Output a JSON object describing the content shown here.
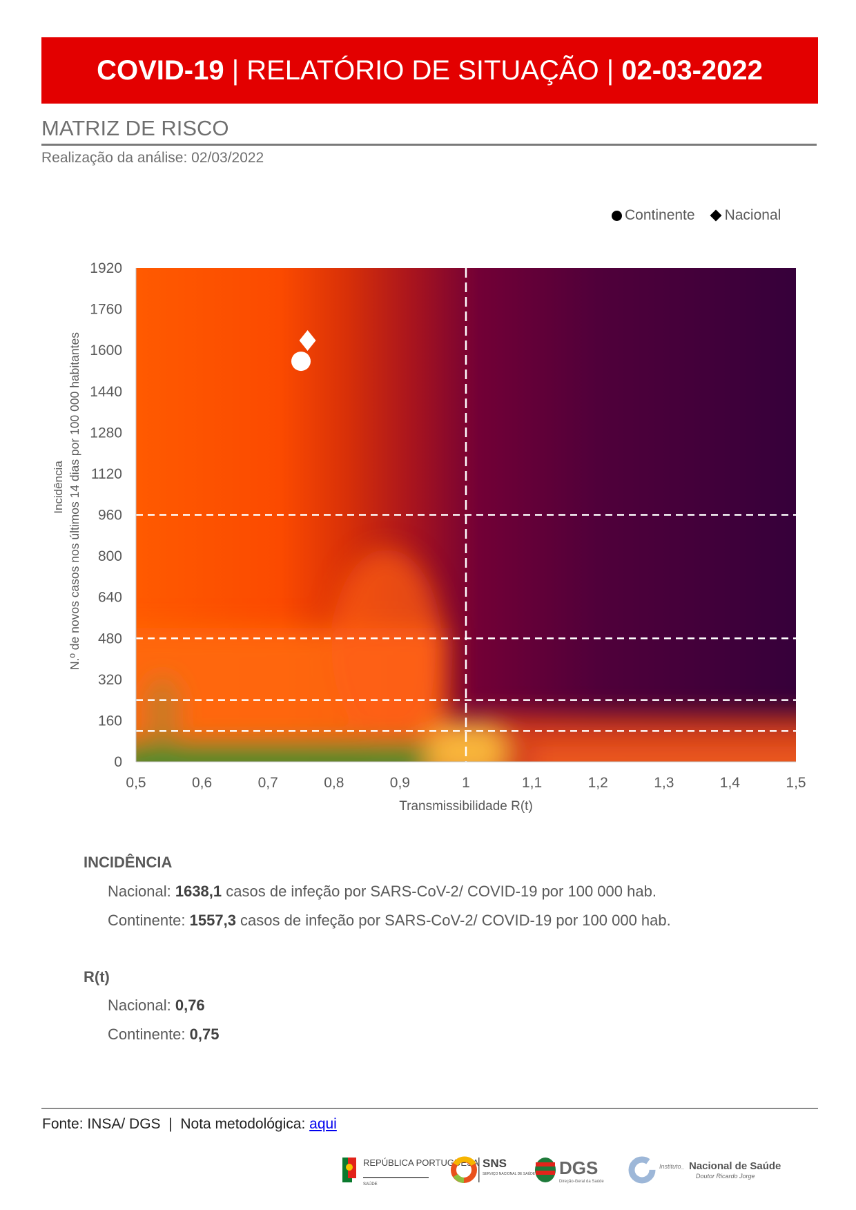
{
  "header": {
    "part1": "COVID-19",
    "sep": " | ",
    "part2": "RELATÓRIO DE SITUAÇÃO",
    "part3": "02-03-2022"
  },
  "section": {
    "title": "MATRIZ DE RISCO",
    "subtitle": "Realização da análise: 02/03/2022"
  },
  "chart_data": {
    "type": "scatter",
    "background": "risk heatmap (green low-risk to dark purple high-risk)",
    "xlabel": "Transmissibilidade R(t)",
    "ylabel_line1": "Incidência",
    "ylabel_line2": "N.º de novos casos nos últimos 14 dias por 100 000 habitantes",
    "xlim": [
      0.5,
      1.5
    ],
    "ylim": [
      0,
      1920
    ],
    "x_ticks": [
      "0,5",
      "0,6",
      "0,7",
      "0,8",
      "0,9",
      "1",
      "1,1",
      "1,2",
      "1,3",
      "1,4",
      "1,5"
    ],
    "y_ticks": [
      "0",
      "160",
      "320",
      "480",
      "640",
      "800",
      "960",
      "1120",
      "1280",
      "1440",
      "1600",
      "1760",
      "1920"
    ],
    "reference_lines": {
      "x": [
        1
      ],
      "y": [
        120,
        240,
        480,
        960
      ]
    },
    "legend_position": "top-right",
    "series": [
      {
        "name": "Continente",
        "marker": "circle",
        "x": [
          0.75
        ],
        "y": [
          1557.3
        ]
      },
      {
        "name": "Nacional",
        "marker": "diamond",
        "x": [
          0.76
        ],
        "y": [
          1638.1
        ]
      }
    ]
  },
  "incidencia": {
    "heading": "INCIDÊNCIA",
    "nacional_label": "Nacional: ",
    "nacional_value": "1638,1",
    "continente_label": "Continente: ",
    "continente_value": "1557,3",
    "suffix": " casos de infeção por SARS-CoV-2/ COVID-19 por 100 000 hab."
  },
  "rt": {
    "heading": "R(t)",
    "nacional_label": "Nacional: ",
    "nacional_value": "0,76",
    "continente_label": "Continente: ",
    "continente_value": "0,75"
  },
  "footer": {
    "source": "Fonte: INSA/ DGS  |  Nota metodológica: ",
    "link": "aqui"
  },
  "logos": {
    "republica": "REPÚBLICA PORTUGUESA",
    "republica_sub": "SAÚDE",
    "sns": "SNS",
    "sns_sub": "SERVIÇO NACIONAL DE SAÚDE",
    "dgs": "DGS",
    "dgs_sub": "Direção-Geral da Saúde",
    "insa_prefix": "Instituto_",
    "insa": "Nacional de Saúde",
    "insa_sub": "Doutor Ricardo Jorge"
  },
  "colors": {
    "banner": "#e30000",
    "risk_low": "#3a8a2a",
    "risk_mid": "#ff5500",
    "risk_high": "#38003a"
  }
}
